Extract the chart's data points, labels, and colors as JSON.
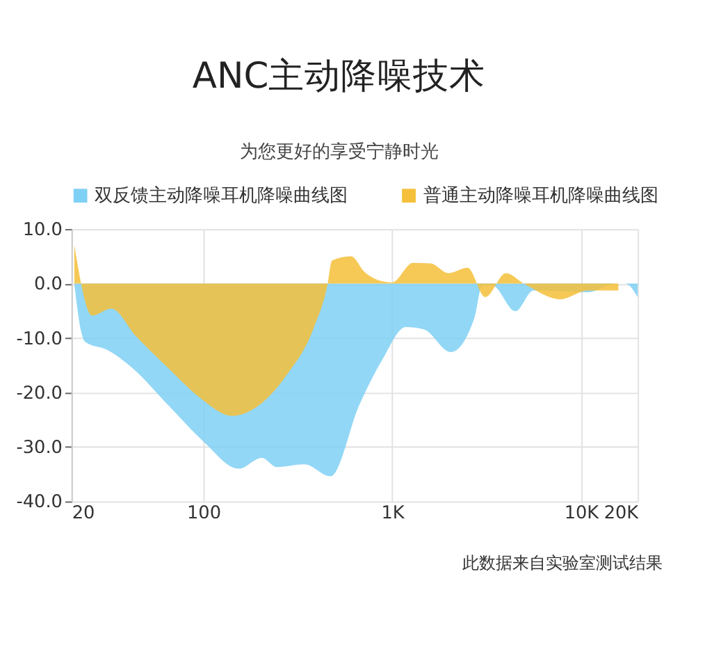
{
  "chart_data": {
    "type": "area",
    "title": "ANC主动降噪技术",
    "subtitle": "为您更好的享受宁静时光",
    "log": "x",
    "grid": true,
    "legend": "top",
    "xlim": [
      20,
      20000
    ],
    "xticks": [
      20,
      100,
      {
        "value": 1000,
        "label": "1K"
      },
      {
        "value": 10000,
        "label": "10K"
      },
      {
        "value": 20000,
        "label": "20K"
      }
    ],
    "ylim": [
      -40,
      10
    ],
    "yticks": [
      {
        "value": 10,
        "label": "10.0"
      },
      {
        "value": 0,
        "label": "0.0"
      },
      {
        "value": -10,
        "label": "-10.0"
      },
      {
        "value": -20,
        "label": "-20.0"
      },
      {
        "value": -30,
        "label": "-30.0"
      },
      {
        "value": -40,
        "label": "-40.0"
      }
    ],
    "annotations": [
      "此数据来自实验室测试结果"
    ],
    "series": [
      {
        "name": "双反馈主动降噪耳机降噪曲线图",
        "color": "#7fd0f5",
        "x": [
          20.7,
          22.5,
          23.6,
          31,
          42,
          65,
          100,
          154,
          204,
          245,
          343,
          472,
          670,
          890,
          1180,
          1470,
          2050,
          2730,
          3000,
          3400,
          4500,
          5600,
          10900,
          15300,
          17200,
          20000
        ],
        "values": [
          0,
          -8.8,
          -10.7,
          -12.2,
          -15.5,
          -22.3,
          -29,
          -34,
          -32,
          -33.7,
          -33.2,
          -35.4,
          -22.3,
          -13.9,
          -8,
          -8.4,
          -12.6,
          -6.3,
          -0.4,
          -0.4,
          -5.1,
          -1.3,
          -1.6,
          0,
          0,
          -2.5
        ]
      },
      {
        "name": "普通主动降噪耳机降噪曲线图",
        "color": "#f5c03a",
        "x": [
          20.7,
          25.7,
          32.5,
          44,
          65,
          96,
          142,
          198,
          276,
          386,
          456,
          480,
          606,
          716,
          890,
          1000,
          1290,
          1600,
          1990,
          2510,
          3120,
          4010,
          4980,
          7800,
          10900,
          15800
        ],
        "values": [
          7.1,
          -5.9,
          -4.6,
          -9.7,
          -15.5,
          -21,
          -24.3,
          -22.3,
          -16.8,
          -8,
          0,
          4.2,
          5,
          2.1,
          0.4,
          0.2,
          3.8,
          3.7,
          1.9,
          2.9,
          -2.5,
          1.9,
          0,
          -2.9,
          -1.3,
          -1.3
        ]
      }
    ]
  }
}
